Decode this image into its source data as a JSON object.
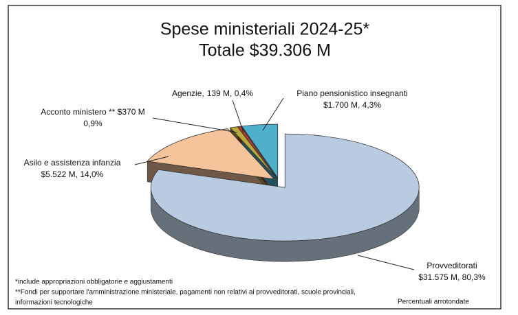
{
  "chart_data": {
    "type": "pie",
    "title": "Spese ministeriali 2024-25*",
    "subtitle": "Totale $39.306 M",
    "categories": [
      "Provveditorati",
      "Asilo e assistenza infanzia",
      "Acconto ministero ** $370 M",
      "Agenzie,",
      "Piano pensionistico insegnanti"
    ],
    "values": [
      80.3,
      14.0,
      0.9,
      0.4,
      4.3
    ],
    "value_labels": [
      "$31.575 M, 80,3%",
      "$5.522 M, 14,0%",
      "0,9%",
      "139 M, 0,4%",
      "$1.700 M, 4,3%"
    ],
    "colors": [
      "#b9cbe0",
      "#f6c49b",
      "#b9a83a",
      "#c0392b",
      "#4fb0cc"
    ],
    "notes": [
      "*include appropriazioni obbligatorie e aggiustamenti",
      "**Fondi per supportare l'amministrazione ministeriale, pagamenti non relativi ai provveditorati, scuole provinciali,",
      "informazioni tecnologiche"
    ],
    "annotation": "Percentuali arrotondate"
  }
}
